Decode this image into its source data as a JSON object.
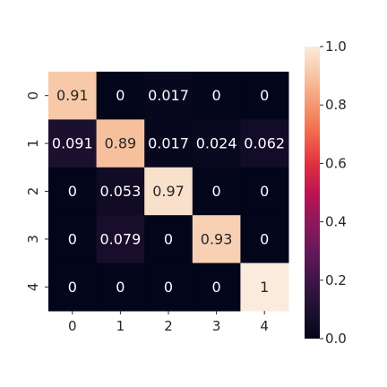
{
  "chart_data": {
    "type": "heatmap",
    "x_categories": [
      "0",
      "1",
      "2",
      "3",
      "4"
    ],
    "y_categories": [
      "0",
      "1",
      "2",
      "3",
      "4"
    ],
    "values": [
      [
        0.91,
        0,
        0.017,
        0,
        0
      ],
      [
        0.091,
        0.89,
        0.017,
        0.024,
        0.062
      ],
      [
        0,
        0.053,
        0.97,
        0,
        0
      ],
      [
        0,
        0.079,
        0,
        0.93,
        0
      ],
      [
        0,
        0,
        0,
        0,
        1
      ]
    ],
    "cell_labels": [
      [
        "0.91",
        "0",
        "0.017",
        "0",
        "0"
      ],
      [
        "0.091",
        "0.89",
        "0.017",
        "0.024",
        "0.062"
      ],
      [
        "0",
        "0.053",
        "0.97",
        "0",
        "0"
      ],
      [
        "0",
        "0.079",
        "0",
        "0.93",
        "0"
      ],
      [
        "0",
        "0",
        "0",
        "0",
        "1"
      ]
    ],
    "colorbar": {
      "range": [
        0,
        1
      ],
      "ticks": [
        "0.0",
        "0.2",
        "0.4",
        "0.6",
        "0.8",
        "1.0"
      ],
      "colormap": "rocket"
    },
    "title": "",
    "xlabel": "",
    "ylabel": "",
    "grid": false
  }
}
